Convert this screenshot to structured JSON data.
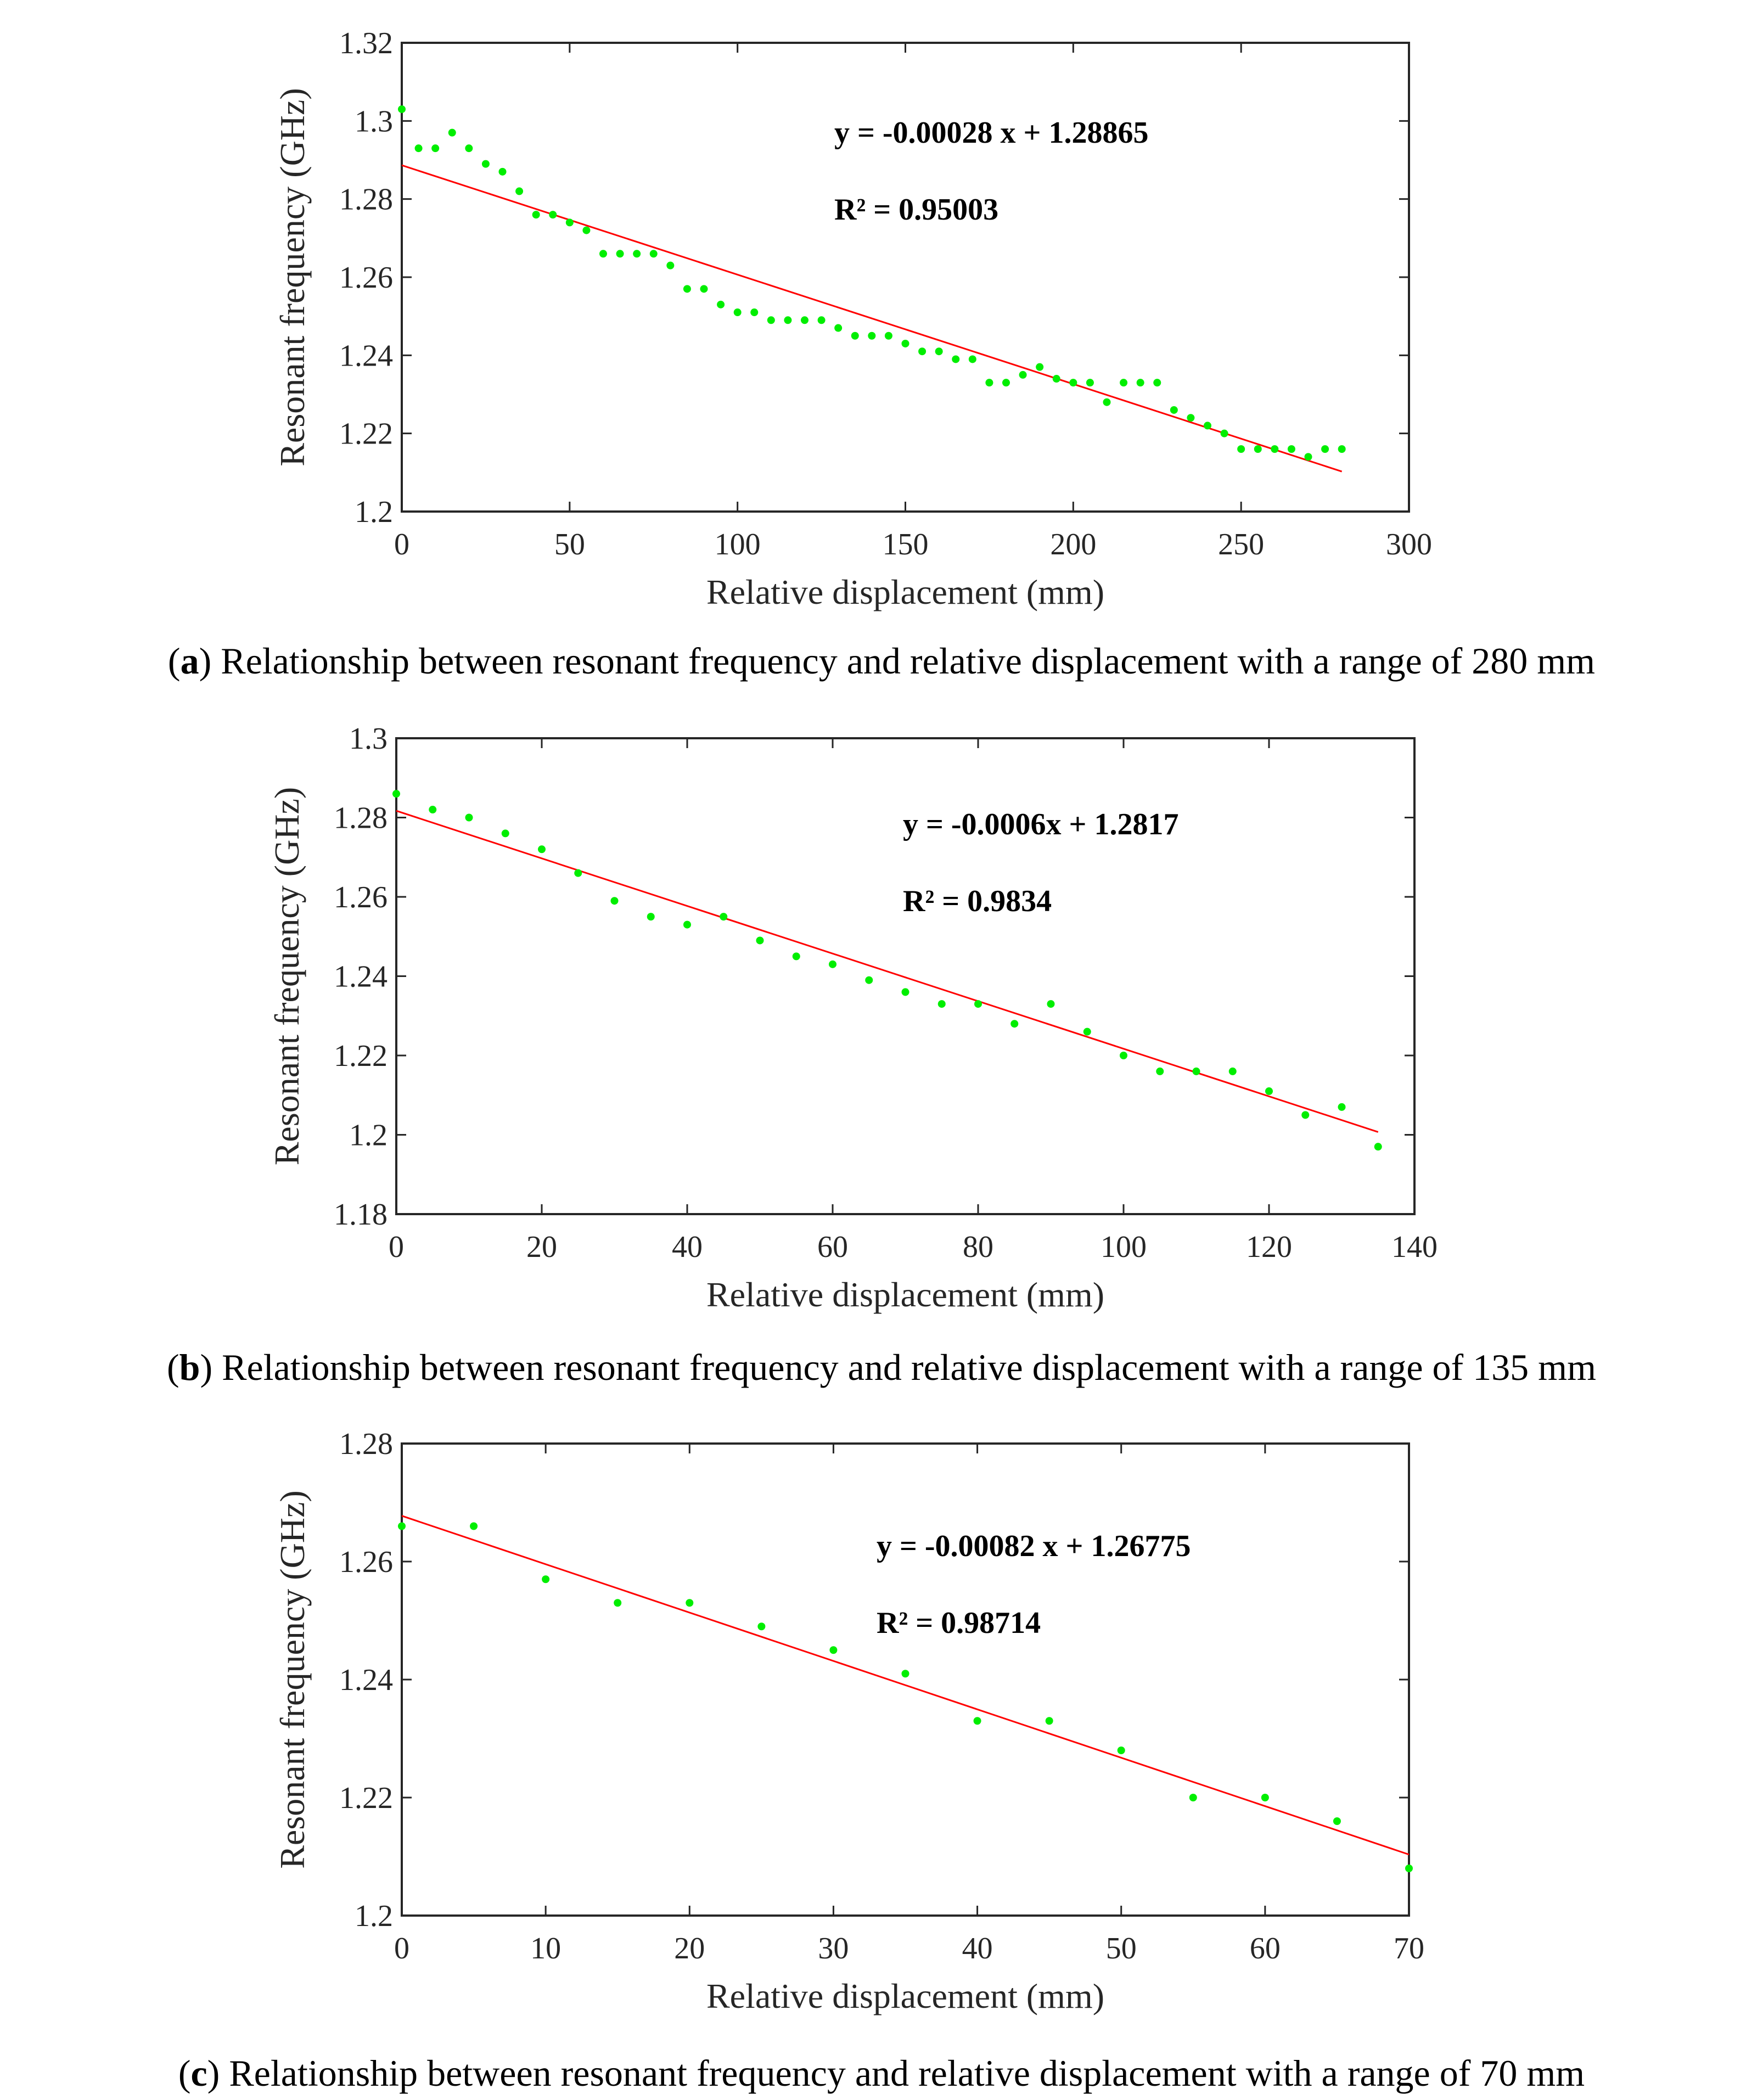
{
  "colors": {
    "points": "#00ee00",
    "fit_line": "#ff0000",
    "axis": "#262626"
  },
  "chart_data": [
    {
      "id": "a",
      "type": "scatter",
      "xlabel": "Relative displacement (mm)",
      "ylabel": "Resonant frequency (GHz)",
      "xlim": [
        0,
        300
      ],
      "ylim": [
        1.2,
        1.32
      ],
      "xticks": [
        0,
        50,
        100,
        150,
        200,
        250,
        300
      ],
      "yticks": [
        1.2,
        1.22,
        1.24,
        1.26,
        1.28,
        1.3,
        1.32
      ],
      "ytick_labels": [
        "1.2",
        "1.22",
        "1.24",
        "1.26",
        "1.28",
        "1.3",
        "1.32"
      ],
      "equation": "y = -0.00028 x + 1.28865",
      "r_squared": "R² = 0.95003",
      "fit": {
        "slope": -0.00028,
        "intercept": 1.28865,
        "x_range": [
          0,
          280
        ]
      },
      "x": [
        0,
        5,
        10,
        15,
        20,
        25,
        30,
        35,
        40,
        45,
        50,
        55,
        60,
        65,
        70,
        75,
        80,
        85,
        90,
        95,
        100,
        105,
        110,
        115,
        120,
        125,
        130,
        135,
        140,
        145,
        150,
        155,
        160,
        165,
        170,
        175,
        180,
        185,
        190,
        195,
        200,
        205,
        210,
        215,
        220,
        225,
        230,
        235,
        240,
        245,
        250,
        255,
        260,
        265,
        270,
        275,
        280
      ],
      "y": [
        1.303,
        1.293,
        1.293,
        1.297,
        1.293,
        1.289,
        1.287,
        1.282,
        1.276,
        1.276,
        1.274,
        1.272,
        1.266,
        1.266,
        1.266,
        1.266,
        1.263,
        1.257,
        1.257,
        1.253,
        1.251,
        1.251,
        1.249,
        1.249,
        1.249,
        1.249,
        1.247,
        1.245,
        1.245,
        1.245,
        1.243,
        1.241,
        1.241,
        1.239,
        1.239,
        1.233,
        1.233,
        1.235,
        1.237,
        1.234,
        1.233,
        1.233,
        1.228,
        1.233,
        1.233,
        1.233,
        1.226,
        1.224,
        1.222,
        1.22,
        1.216,
        1.216,
        1.216,
        1.216,
        1.214,
        1.216,
        1.216
      ],
      "caption_label": "a",
      "caption_text": "Relationship between resonant frequency and relative displacement with a range of 280 mm"
    },
    {
      "id": "b",
      "type": "scatter",
      "xlabel": "Relative displacement (mm)",
      "ylabel": "Resonant frequency (GHz)",
      "xlim": [
        0,
        140
      ],
      "ylim": [
        1.18,
        1.3
      ],
      "xticks": [
        0,
        20,
        40,
        60,
        80,
        100,
        120,
        140
      ],
      "yticks": [
        1.18,
        1.2,
        1.22,
        1.24,
        1.26,
        1.28,
        1.3
      ],
      "ytick_labels": [
        "1.18",
        "1.2",
        "1.22",
        "1.24",
        "1.26",
        "1.28",
        "1.3"
      ],
      "equation": "y = -0.0006x + 1.2817",
      "r_squared": "R² = 0.9834",
      "fit": {
        "slope": -0.0006,
        "intercept": 1.2817,
        "x_range": [
          0,
          135
        ]
      },
      "x": [
        0,
        5,
        10,
        15,
        20,
        25,
        30,
        35,
        40,
        45,
        50,
        55,
        60,
        65,
        70,
        75,
        80,
        85,
        90,
        95,
        100,
        105,
        110,
        115,
        120,
        125,
        130,
        135
      ],
      "y": [
        1.286,
        1.282,
        1.28,
        1.276,
        1.272,
        1.266,
        1.259,
        1.255,
        1.253,
        1.255,
        1.249,
        1.245,
        1.243,
        1.239,
        1.236,
        1.233,
        1.233,
        1.228,
        1.233,
        1.226,
        1.22,
        1.216,
        1.216,
        1.216,
        1.211,
        1.205,
        1.207,
        1.197
      ],
      "caption_label": "b",
      "caption_text": "Relationship between resonant frequency and relative displacement with a range of 135 mm"
    },
    {
      "id": "c",
      "type": "scatter",
      "xlabel": "Relative displacement (mm)",
      "ylabel": "Resonant frequency (GHz)",
      "xlim": [
        0,
        70
      ],
      "ylim": [
        1.2,
        1.28
      ],
      "xticks": [
        0,
        10,
        20,
        30,
        40,
        50,
        60,
        70
      ],
      "yticks": [
        1.2,
        1.22,
        1.24,
        1.26,
        1.28
      ],
      "ytick_labels": [
        "1.2",
        "1.22",
        "1.24",
        "1.26",
        "1.28"
      ],
      "equation": "y = -0.00082 x + 1.26775",
      "r_squared": "R² = 0.98714",
      "fit": {
        "slope": -0.00082,
        "intercept": 1.26775,
        "x_range": [
          0,
          70
        ]
      },
      "x": [
        0,
        5,
        10,
        15,
        20,
        25,
        30,
        35,
        40,
        45,
        50,
        55,
        60,
        65,
        70
      ],
      "y": [
        1.266,
        1.266,
        1.257,
        1.253,
        1.253,
        1.249,
        1.245,
        1.241,
        1.233,
        1.233,
        1.228,
        1.22,
        1.22,
        1.216,
        1.208
      ],
      "caption_label": "c",
      "caption_text": "Relationship between resonant frequency and relative displacement with a range of 70 mm"
    }
  ]
}
